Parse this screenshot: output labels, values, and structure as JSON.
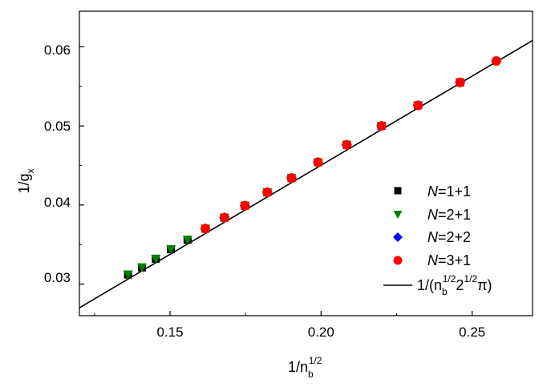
{
  "chart_data": {
    "type": "scatter",
    "xlabel": {
      "base": "1/n",
      "sub": "b",
      "sup": "1/2"
    },
    "ylabel": {
      "base": "1/g",
      "sub": "x"
    },
    "xlim": [
      0.12,
      0.27
    ],
    "ylim": [
      0.026,
      0.0645
    ],
    "x_ticks": [
      "0.15",
      "0.20",
      "0.25"
    ],
    "x_tick_values": [
      0.15,
      0.2,
      0.25
    ],
    "y_ticks": [
      "0.03",
      "0.04",
      "0.05",
      "0.06"
    ],
    "y_tick_values": [
      0.03,
      0.04,
      0.05,
      0.06
    ],
    "legend_position": "lower-right",
    "series": [
      {
        "name": "N=1+1",
        "marker": "square",
        "color": "#000000",
        "points": [
          [
            0.1361,
            0.0312
          ],
          [
            0.1407,
            0.0321
          ],
          [
            0.1453,
            0.0332
          ],
          [
            0.1503,
            0.0344
          ],
          [
            0.1558,
            0.0356
          ],
          [
            0.1617,
            0.037
          ],
          [
            0.168,
            0.0384
          ],
          [
            0.1748,
            0.0399
          ],
          [
            0.1822,
            0.0416
          ],
          [
            0.1902,
            0.0434
          ],
          [
            0.199,
            0.0454
          ],
          [
            0.2085,
            0.0476
          ],
          [
            0.22,
            0.05
          ],
          [
            0.2321,
            0.0526
          ],
          [
            0.246,
            0.0555
          ]
        ]
      },
      {
        "name": "N=2+1",
        "marker": "triangle-down",
        "color": "#008000",
        "points": [
          [
            0.1361,
            0.0312
          ],
          [
            0.1407,
            0.0321
          ],
          [
            0.1453,
            0.0332
          ],
          [
            0.1503,
            0.0344
          ],
          [
            0.1558,
            0.0356
          ],
          [
            0.1617,
            0.037
          ],
          [
            0.168,
            0.0384
          ],
          [
            0.1748,
            0.0399
          ],
          [
            0.1822,
            0.0416
          ],
          [
            0.1902,
            0.0434
          ],
          [
            0.199,
            0.0454
          ],
          [
            0.2085,
            0.0476
          ],
          [
            0.22,
            0.05
          ],
          [
            0.2321,
            0.0526
          ],
          [
            0.246,
            0.0555
          ]
        ]
      },
      {
        "name": "N=2+2",
        "marker": "diamond",
        "color": "#0000ff",
        "points": [
          [
            0.1617,
            0.037
          ],
          [
            0.168,
            0.0384
          ],
          [
            0.1748,
            0.0399
          ],
          [
            0.1822,
            0.0416
          ],
          [
            0.1902,
            0.0434
          ],
          [
            0.199,
            0.0454
          ],
          [
            0.2085,
            0.0476
          ],
          [
            0.22,
            0.05
          ],
          [
            0.2321,
            0.0526
          ],
          [
            0.246,
            0.0555
          ]
        ]
      },
      {
        "name": "N=3+1",
        "marker": "circle",
        "color": "#ff0000",
        "points": [
          [
            0.1617,
            0.037
          ],
          [
            0.168,
            0.0384
          ],
          [
            0.1748,
            0.0399
          ],
          [
            0.1822,
            0.0416
          ],
          [
            0.1902,
            0.0434
          ],
          [
            0.199,
            0.0454
          ],
          [
            0.2085,
            0.0476
          ],
          [
            0.22,
            0.05
          ],
          [
            0.2321,
            0.0526
          ],
          [
            0.246,
            0.0555
          ],
          [
            0.258,
            0.0582
          ]
        ]
      },
      {
        "name": "1/(n_b^{1/2}2^{1/2}π)",
        "type": "line",
        "color": "#000000",
        "x": [
          0.12,
          0.27
        ],
        "y": [
          0.027,
          0.0608
        ]
      }
    ],
    "legend": {
      "n1": {
        "italic": "N",
        "rest": "=1+1"
      },
      "n2": {
        "italic": "N",
        "rest": "=2+1"
      },
      "n3": {
        "italic": "N",
        "rest": "=2+2"
      },
      "n4": {
        "italic": "N",
        "rest": "=3+1"
      },
      "fit": {
        "pre": "1/(n",
        "sub1": "b",
        "sup1": "1/2",
        "mid": "2",
        "sup2": "1/2",
        "post": "π)"
      }
    }
  }
}
